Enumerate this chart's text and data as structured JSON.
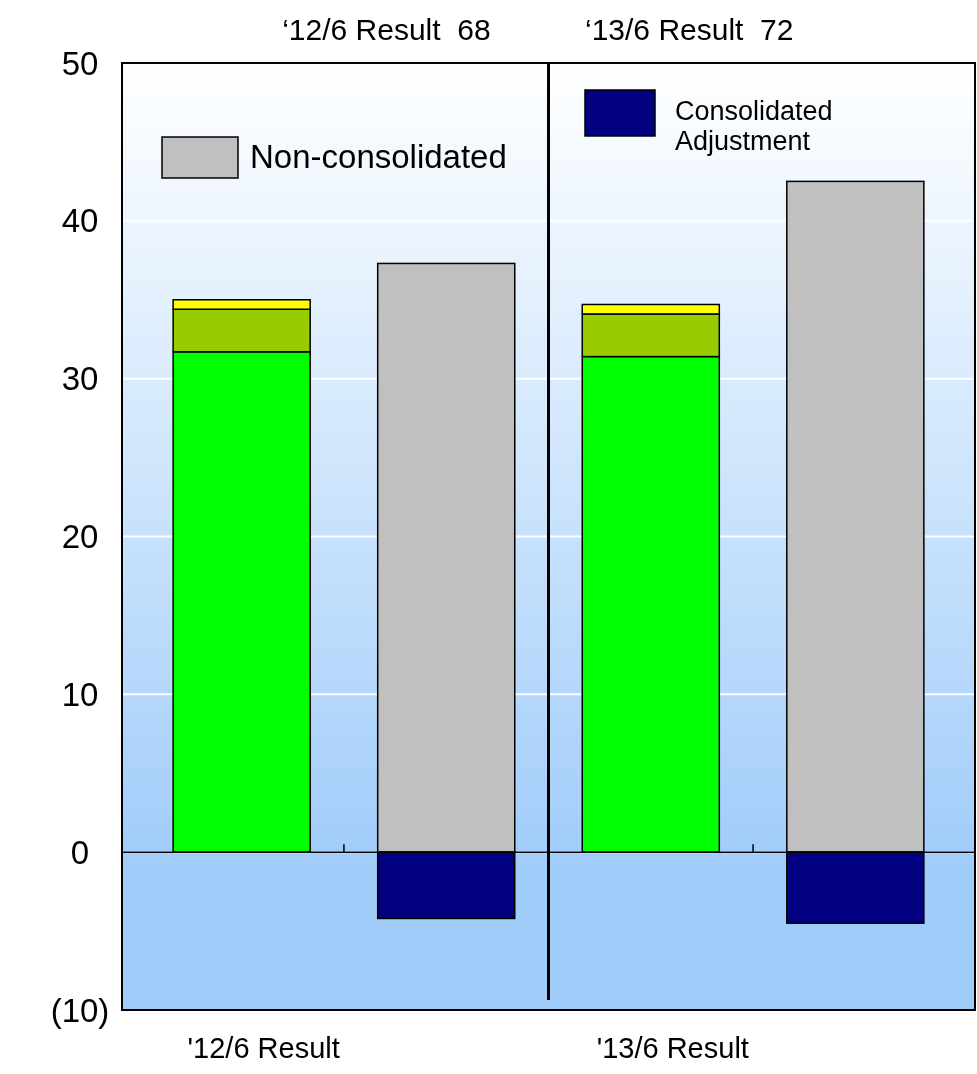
{
  "chart_data": {
    "type": "bar",
    "stacked": true,
    "annotations": [
      "‘12/6 Result  68",
      "‘13/6 Result  72"
    ],
    "categories": [
      "'12/6 Result",
      null,
      "'13/6 Result",
      null
    ],
    "series": [
      {
        "color": "#00ff00",
        "values": [
          31.7,
          null,
          31.4,
          null
        ]
      },
      {
        "color": "#99cc00",
        "values": [
          2.7,
          null,
          2.7,
          null
        ]
      },
      {
        "color": "#ffff00",
        "values": [
          0.6,
          null,
          0.6,
          null
        ]
      },
      {
        "name": "Non-consolidated",
        "color": "#c0c0c0",
        "values": [
          null,
          37.3,
          null,
          42.5
        ]
      },
      {
        "name": "Consolidated Adjustment",
        "color": "#000080",
        "values": [
          null,
          -4.2,
          null,
          -4.5
        ]
      }
    ],
    "ylim": [
      -10,
      50
    ],
    "yticks": [
      50,
      40,
      30,
      20,
      10,
      0,
      {
        "value": -10,
        "label": "(10)"
      }
    ],
    "grid": "y",
    "legend": "top"
  }
}
